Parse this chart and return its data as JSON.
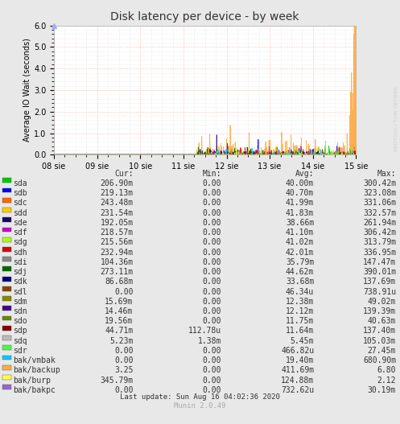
{
  "title": "Disk latency per device - by week",
  "ylabel": "Average IO Wait (seconds)",
  "bg_color": "#e8e8e8",
  "plot_bg_color": "#ffffff",
  "grid_color_major": "#ffaaaa",
  "grid_color_minor": "#dddddd",
  "ylim": [
    0.0,
    6.0
  ],
  "yticks": [
    0.0,
    1.0,
    2.0,
    3.0,
    4.0,
    5.0,
    6.0
  ],
  "xtick_labels": [
    "08 sie",
    "09 sie",
    "10 sie",
    "11 sie",
    "12 sie",
    "13 sie",
    "14 sie",
    "15 sie"
  ],
  "watermark": "RRDTOOL / TOBI OETIKER",
  "munin_version": "Munin 2.0.49",
  "last_update": "Last update: Sun Aug 16 04:02:36 2020",
  "legend_entries": [
    {
      "label": "sda",
      "color": "#00cc00",
      "cur": "206.90m",
      "min": "0.00",
      "avg": "40.00m",
      "max": "300.42m"
    },
    {
      "label": "sdb",
      "color": "#0000ff",
      "cur": "219.13m",
      "min": "0.00",
      "avg": "40.70m",
      "max": "323.08m"
    },
    {
      "label": "sdc",
      "color": "#ff6600",
      "cur": "243.48m",
      "min": "0.00",
      "avg": "41.99m",
      "max": "331.06m"
    },
    {
      "label": "sdd",
      "color": "#ffcc00",
      "cur": "231.54m",
      "min": "0.00",
      "avg": "41.83m",
      "max": "332.57m"
    },
    {
      "label": "sde",
      "color": "#1a0070",
      "cur": "192.05m",
      "min": "0.00",
      "avg": "38.66m",
      "max": "261.94m"
    },
    {
      "label": "sdf",
      "color": "#cc00cc",
      "cur": "218.57m",
      "min": "0.00",
      "avg": "41.10m",
      "max": "306.42m"
    },
    {
      "label": "sdg",
      "color": "#aaff00",
      "cur": "215.56m",
      "min": "0.00",
      "avg": "41.02m",
      "max": "313.79m"
    },
    {
      "label": "sdh",
      "color": "#dd0000",
      "cur": "232.94m",
      "min": "0.00",
      "avg": "42.01m",
      "max": "336.95m"
    },
    {
      "label": "sdi",
      "color": "#888888",
      "cur": "104.36m",
      "min": "0.00",
      "avg": "35.79m",
      "max": "147.47m"
    },
    {
      "label": "sdj",
      "color": "#006600",
      "cur": "273.11m",
      "min": "0.00",
      "avg": "44.62m",
      "max": "390.01m"
    },
    {
      "label": "sdk",
      "color": "#000080",
      "cur": "86.68m",
      "min": "0.00",
      "avg": "33.68m",
      "max": "137.69m"
    },
    {
      "label": "sdl",
      "color": "#884400",
      "cur": "0.00",
      "min": "0.00",
      "avg": "46.34u",
      "max": "738.91u"
    },
    {
      "label": "sdm",
      "color": "#888800",
      "cur": "15.69m",
      "min": "0.00",
      "avg": "12.38m",
      "max": "49.02m"
    },
    {
      "label": "sdn",
      "color": "#440088",
      "cur": "14.46m",
      "min": "0.00",
      "avg": "12.12m",
      "max": "139.39m"
    },
    {
      "label": "sdo",
      "color": "#668800",
      "cur": "19.56m",
      "min": "0.00",
      "avg": "11.75m",
      "max": "40.63m"
    },
    {
      "label": "sdp",
      "color": "#880000",
      "cur": "44.71m",
      "min": "112.78u",
      "avg": "11.64m",
      "max": "137.40m"
    },
    {
      "label": "sdq",
      "color": "#bbbbbb",
      "cur": "5.23m",
      "min": "1.38m",
      "avg": "5.45m",
      "max": "105.03m"
    },
    {
      "label": "sdr",
      "color": "#44ff44",
      "cur": "0.00",
      "min": "0.00",
      "avg": "466.82u",
      "max": "27.45m"
    },
    {
      "label": "bak/vmbak",
      "color": "#00ccff",
      "cur": "0.00",
      "min": "0.00",
      "avg": "19.40m",
      "max": "680.90m"
    },
    {
      "label": "bak/backup",
      "color": "#ffaa44",
      "cur": "3.25",
      "min": "0.00",
      "avg": "411.69m",
      "max": "6.80"
    },
    {
      "label": "bak/burp",
      "color": "#ffff44",
      "cur": "345.79m",
      "min": "0.00",
      "avg": "124.88m",
      "max": "2.12"
    },
    {
      "label": "bak/bakpc",
      "color": "#9966cc",
      "cur": "0.00",
      "min": "0.00",
      "avg": "732.62u",
      "max": "30.19m"
    }
  ]
}
